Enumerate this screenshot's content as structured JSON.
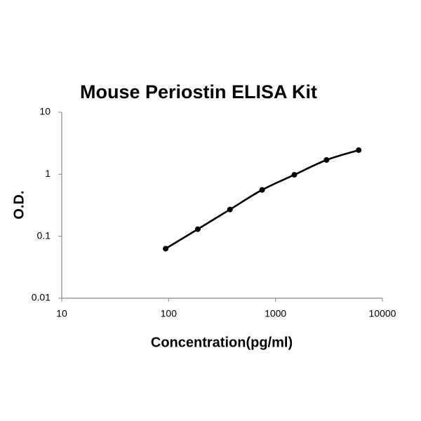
{
  "chart_data": {
    "type": "line",
    "title": "Mouse Periostin ELISA Kit",
    "x_label": "Concentration(pg/ml)",
    "y_label": "O.D.",
    "x": [
      93.75,
      187.5,
      375,
      750,
      1500,
      3000,
      6000
    ],
    "series": [
      {
        "name": "O.D.",
        "color": "#000000",
        "values": [
          0.063,
          0.13,
          0.27,
          0.56,
          0.98,
          1.7,
          2.45
        ]
      }
    ],
    "x_scale": "log",
    "y_scale": "log",
    "xlim": [
      10,
      10000
    ],
    "ylim": [
      0.01,
      10
    ],
    "xticks": [
      10,
      100,
      1000,
      10000
    ],
    "yticks": [
      0.01,
      0.1,
      1,
      10
    ],
    "markers": true,
    "smooth": true
  }
}
